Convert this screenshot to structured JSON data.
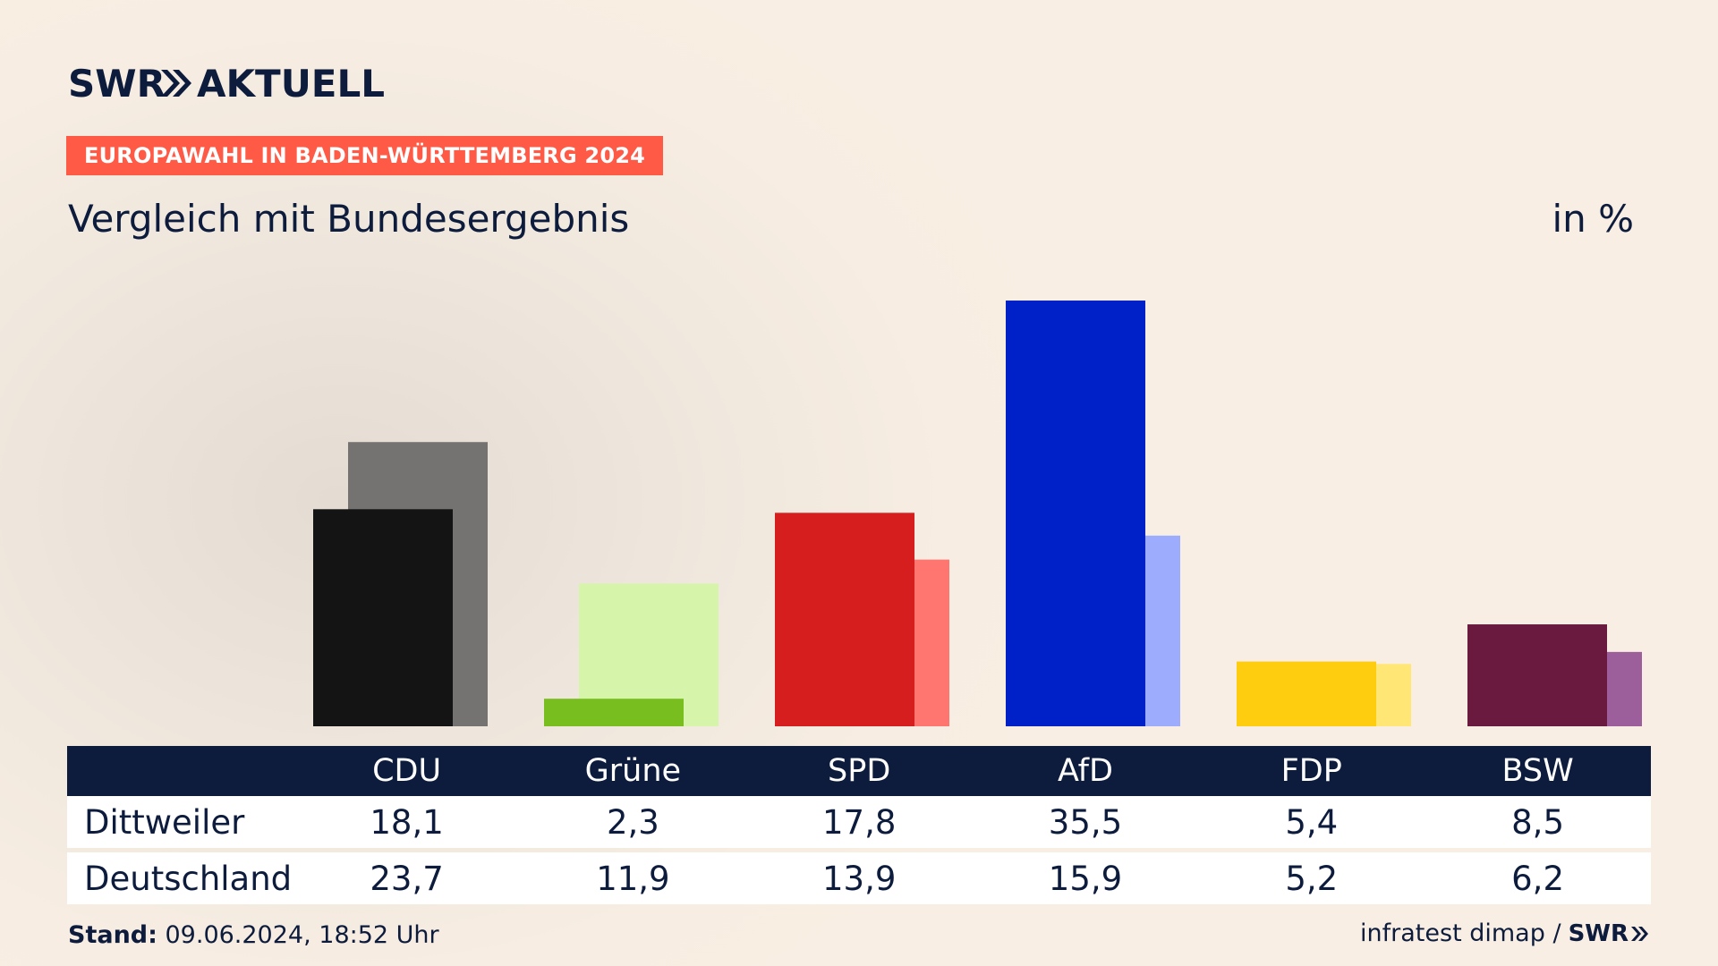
{
  "brand": {
    "logo_text": "SWR AKTUELL",
    "swr_label": "SWR"
  },
  "header": {
    "headline": "EUROPAWAHL IN BADEN-WÜRTTEMBERG 2024",
    "subtitle": "Vergleich mit Bundesergebnis",
    "unit": "in %"
  },
  "table": {
    "parties": [
      "CDU",
      "Grüne",
      "SPD",
      "AfD",
      "FDP",
      "BSW"
    ],
    "rows": [
      {
        "label": "Dittweiler",
        "values": [
          "18,1",
          "2,3",
          "17,8",
          "35,5",
          "5,4",
          "8,5"
        ]
      },
      {
        "label": "Deutschland",
        "values": [
          "23,7",
          "11,9",
          "13,9",
          "15,9",
          "5,2",
          "6,2"
        ]
      }
    ]
  },
  "footer": {
    "stand_label": "Stand:",
    "stand_value": " 09.06.2024, 18:52 Uhr",
    "source": "infratest dimap /"
  },
  "colors": {
    "headline_bg": "#ff5a46",
    "navy": "#0d1c3d"
  },
  "chart_data": {
    "type": "bar",
    "title": "Vergleich mit Bundesergebnis",
    "ylabel": "in %",
    "categories": [
      "CDU",
      "Grüne",
      "SPD",
      "AfD",
      "FDP",
      "BSW"
    ],
    "series": [
      {
        "name": "Dittweiler",
        "values": [
          18.1,
          2.3,
          17.8,
          35.5,
          5.4,
          8.5
        ],
        "colors": [
          "#141414",
          "#78be1e",
          "#d61e1e",
          "#0021c8",
          "#ffcd0f",
          "#6b1a3f"
        ]
      },
      {
        "name": "Deutschland",
        "values": [
          23.7,
          11.9,
          13.9,
          15.9,
          5.2,
          6.2
        ],
        "colors": [
          "#757372",
          "#d7f5aa",
          "#ff7671",
          "#9eacfe",
          "#ffe675",
          "#9c5f9b"
        ]
      }
    ],
    "ylim": [
      0,
      35.5
    ],
    "grid": false,
    "legend": "table-below"
  }
}
